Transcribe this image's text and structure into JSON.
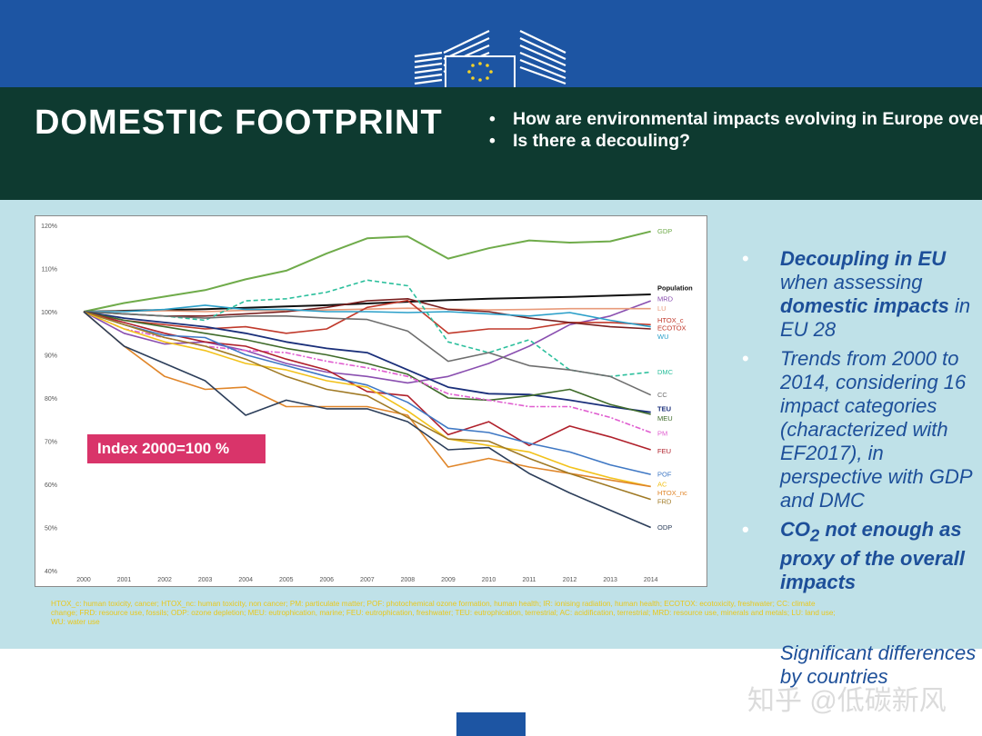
{
  "header": {
    "title": "DOMESTIC FOOTPRINT",
    "questions": [
      "How are environmental impacts evolving in Europe over time?",
      "Is there a decouling?"
    ]
  },
  "badge": {
    "text": "Index 2000=100 %"
  },
  "right_panel": {
    "bullet1_bold_a": "Decoupling in EU",
    "bullet1_text_a": " when assessing ",
    "bullet1_bold_b": "domestic impacts",
    "bullet1_text_b": " in EU 28",
    "bullet2_text": "Trends from 2000 to 2014, considering 16 impact categories (characterized with EF2017), in perspective with GDP and DMC",
    "bullet3_co": "CO",
    "bullet3_sub": "2",
    "bullet3_rest": " not enough as proxy of the overall impacts",
    "extra_text": "Significant differences by countries"
  },
  "footnote": "HTOX_c: human toxicity, cancer; HTOX_nc: human toxicity, non cancer; PM: particulate matter; POF: photochemical ozone formation, human health; IR: ionising radiation, human health; ECOTOX: ecotoxicity, freshwater; CC: climate change; FRD: resource use, fossils; ODP: ozone depletion; MEU: eutrophication, marine; FEU: eutrophication, freshwater; TEU: eutrophication, terrestrial; AC: acidification, terrestrial; MRD: resource use, minerals and metals; LU: land use; WU: water use",
  "watermark": "知乎 @低碳新风",
  "colors": {
    "top_band": "#1d55a3",
    "header": "#0e3a30",
    "panel": "#bfe1e8",
    "badge": "#d9346a",
    "bullet_text": "#1d4f99",
    "footnote": "#e8c81d"
  },
  "icons": {
    "logo": "eu-commission-berlaymont-logo-icon",
    "bullet": "bullet-dot-icon"
  },
  "chart_data": {
    "type": "line",
    "title": "",
    "xlabel": "",
    "ylabel": "",
    "ylim": [
      40,
      120
    ],
    "yticks": [
      "40%",
      "50%",
      "60%",
      "70%",
      "80%",
      "90%",
      "100%",
      "110%",
      "120%"
    ],
    "x": [
      "2000",
      "2001",
      "2002",
      "2003",
      "2004",
      "2005",
      "2006",
      "2007",
      "2008",
      "2009",
      "2010",
      "2011",
      "2012",
      "2013",
      "2014"
    ],
    "grid": false,
    "series": [
      {
        "name": "GDP",
        "color": "#6fab4a",
        "width": 2,
        "dash": "",
        "values": [
          100,
          102,
          103.5,
          105,
          107.5,
          109.5,
          113.5,
          117,
          117.4,
          112.3,
          114.7,
          116.5,
          116,
          116.3,
          118.6
        ]
      },
      {
        "name": "Population",
        "color": "#111111",
        "width": 2,
        "dash": "",
        "values": [
          100,
          100.2,
          100.4,
          100.6,
          100.9,
          101.2,
          101.5,
          101.9,
          102.3,
          102.7,
          103,
          103.2,
          103.4,
          103.7,
          104
        ]
      },
      {
        "name": "MRD",
        "color": "#8a4fb0",
        "width": 1.6,
        "dash": "",
        "values": [
          100,
          95,
          92.5,
          93,
          91,
          88,
          86,
          85,
          83.5,
          85,
          88,
          92,
          97,
          99,
          102.5
        ]
      },
      {
        "name": "LU",
        "color": "#e89a7a",
        "width": 1.6,
        "dash": "",
        "values": [
          100,
          100.1,
          100.2,
          100,
          100.3,
          100.2,
          100.4,
          100.6,
          100.8,
          100.6,
          100.4,
          100.5,
          100.7,
          100.7,
          100.7
        ]
      },
      {
        "name": "HTOX_c",
        "color": "#c0392b",
        "width": 1.6,
        "dash": "",
        "values": [
          100,
          98,
          97,
          96,
          96.5,
          95,
          96,
          101,
          102.6,
          95,
          96,
          96,
          97.5,
          97.5,
          97
        ]
      },
      {
        "name": "ECOTOX",
        "color": "#7a1f1f",
        "width": 1.6,
        "dash": "",
        "values": [
          100,
          99.5,
          99,
          99,
          99.5,
          100,
          101,
          102.5,
          103,
          100.5,
          100,
          98.5,
          97.5,
          96.5,
          96
        ]
      },
      {
        "name": "WU",
        "color": "#2a9fc9",
        "width": 1.6,
        "dash": "",
        "values": [
          100,
          100,
          100.5,
          101.5,
          100.5,
          100.5,
          100,
          100,
          99.8,
          100,
          99.5,
          99,
          99.8,
          98,
          96.5
        ]
      },
      {
        "name": "DMC",
        "color": "#2bbf9c",
        "width": 1.6,
        "dash": "5,3",
        "values": [
          100,
          99.5,
          99,
          98,
          102.5,
          103,
          104.5,
          107.3,
          106,
          93,
          90.5,
          93.5,
          86.5,
          85,
          86
        ]
      },
      {
        "name": "CC",
        "color": "#6e6e6e",
        "width": 1.6,
        "dash": "",
        "values": [
          100,
          99.5,
          99,
          98.5,
          99,
          99,
          98.5,
          98.2,
          95.5,
          88.5,
          90.5,
          87.5,
          86.5,
          85,
          80.7
        ]
      },
      {
        "name": "TEU",
        "color": "#1a2f7a",
        "width": 1.8,
        "dash": "",
        "values": [
          100,
          98.5,
          97.5,
          96.5,
          95,
          93,
          91.5,
          90.5,
          86.5,
          82.5,
          81,
          80.8,
          79.5,
          78,
          76.7
        ]
      },
      {
        "name": "MEU",
        "color": "#3f6b2a",
        "width": 1.6,
        "dash": "",
        "values": [
          100,
          98,
          96.5,
          95,
          93.5,
          91.5,
          90,
          88,
          85.5,
          80,
          79.5,
          80.5,
          82,
          78.5,
          76.2
        ]
      },
      {
        "name": "PM",
        "color": "#e05ed0",
        "width": 1.6,
        "dash": "6,2,2,2",
        "values": [
          100,
          96,
          94,
          92,
          91,
          90.5,
          88.5,
          87,
          85,
          81,
          79.5,
          78,
          78,
          75.5,
          72
        ]
      },
      {
        "name": "FEU",
        "color": "#b0202b",
        "width": 1.6,
        "dash": "",
        "values": [
          100,
          97.5,
          95,
          93,
          92,
          89,
          86.5,
          81.5,
          80.5,
          71.5,
          74.5,
          69,
          73.5,
          71,
          68
        ]
      },
      {
        "name": "POF",
        "color": "#3f78c4",
        "width": 1.6,
        "dash": "",
        "values": [
          100,
          97,
          94.5,
          94,
          90,
          87.5,
          85,
          83,
          79,
          73,
          72,
          69.5,
          67.5,
          64.5,
          62.3
        ]
      },
      {
        "name": "AC",
        "color": "#f2c21b",
        "width": 1.6,
        "dash": "",
        "values": [
          100,
          96,
          93,
          91,
          88,
          86.5,
          84,
          82.5,
          77,
          70.5,
          69,
          67.5,
          64,
          61.5,
          59.5
        ]
      },
      {
        "name": "HTOX_nc",
        "color": "#e0862a",
        "width": 1.6,
        "dash": "",
        "values": [
          100,
          92,
          85,
          82,
          82.5,
          78,
          78,
          78,
          76,
          64,
          66,
          64,
          62.5,
          61,
          59.5
        ]
      },
      {
        "name": "FRD",
        "color": "#a07a25",
        "width": 1.6,
        "dash": "",
        "values": [
          100,
          97,
          94,
          92,
          89,
          85,
          82,
          80.5,
          75.5,
          70.5,
          70,
          66,
          62.5,
          59.5,
          56.5
        ]
      },
      {
        "name": "ODP",
        "color": "#2c3e5a",
        "width": 1.6,
        "dash": "",
        "values": [
          100,
          92,
          88,
          84,
          76,
          79.5,
          77.5,
          77.5,
          74.5,
          68,
          68.5,
          62.5,
          58,
          54,
          50
        ]
      }
    ],
    "labels": [
      {
        "text": "GDP",
        "series": "GDP",
        "color": "#6fab4a",
        "bold": false,
        "y": 118.6
      },
      {
        "text": "Population",
        "series": "Population",
        "color": "#111111",
        "bold": true,
        "y": 105.5
      },
      {
        "text": "MRD",
        "series": "MRD",
        "color": "#8a4fb0",
        "bold": false,
        "y": 103
      },
      {
        "text": "LU",
        "series": "LU",
        "color": "#e89a7a",
        "bold": false,
        "y": 100.7
      },
      {
        "text": "HTOX_c",
        "series": "HTOX_c",
        "color": "#c0392b",
        "bold": false,
        "y": 98
      },
      {
        "text": "ECOTOX",
        "series": "ECOTOX",
        "color": "#c0392b",
        "bold": false,
        "y": 96.2
      },
      {
        "text": "WU",
        "series": "WU",
        "color": "#2a9fc9",
        "bold": false,
        "y": 94.2
      },
      {
        "text": "DMC",
        "series": "DMC",
        "color": "#2bbf9c",
        "bold": false,
        "y": 86
      },
      {
        "text": "CC",
        "series": "CC",
        "color": "#6e6e6e",
        "bold": false,
        "y": 80.7
      },
      {
        "text": "TEU",
        "series": "TEU",
        "color": "#1a2f7a",
        "bold": true,
        "y": 77.5
      },
      {
        "text": "MEU",
        "series": "MEU",
        "color": "#3f6b2a",
        "bold": false,
        "y": 75.3
      },
      {
        "text": "PM",
        "series": "PM",
        "color": "#e05ed0",
        "bold": false,
        "y": 71.8
      },
      {
        "text": "FEU",
        "series": "FEU",
        "color": "#b0202b",
        "bold": false,
        "y": 67.7
      },
      {
        "text": "POF",
        "series": "POF",
        "color": "#3f78c4",
        "bold": false,
        "y": 62.3
      },
      {
        "text": "AC",
        "series": "AC",
        "color": "#f2c21b",
        "bold": false,
        "y": 60
      },
      {
        "text": "HTOX_nc",
        "series": "HTOX_nc",
        "color": "#e0862a",
        "bold": false,
        "y": 58
      },
      {
        "text": "FRD",
        "series": "FRD",
        "color": "#a07a25",
        "bold": false,
        "y": 56
      },
      {
        "text": "ODP",
        "series": "ODP",
        "color": "#2c3e5a",
        "bold": false,
        "y": 50
      }
    ]
  }
}
